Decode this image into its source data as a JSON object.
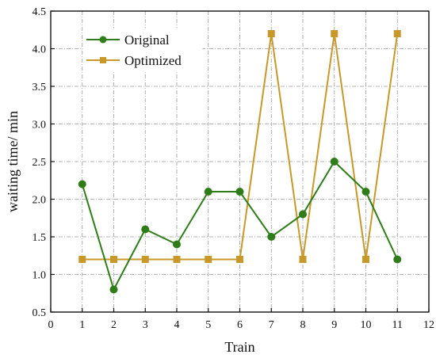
{
  "chart_data": {
    "type": "line",
    "xlabel": "Train",
    "ylabel": "waiting time/ min",
    "xlim": [
      0,
      12
    ],
    "ylim": [
      0.5,
      4.5
    ],
    "x_ticks": [
      0,
      1,
      2,
      3,
      4,
      5,
      6,
      7,
      8,
      9,
      10,
      11,
      12
    ],
    "y_ticks": [
      0.5,
      1.0,
      1.5,
      2.0,
      2.5,
      3.0,
      3.5,
      4.0,
      4.5
    ],
    "grid": true,
    "legend_position": "top-left",
    "series": [
      {
        "name": "Original",
        "color": "#2e7d18",
        "marker": "circle",
        "x": [
          1,
          2,
          3,
          4,
          5,
          6,
          7,
          8,
          9,
          10,
          11
        ],
        "values": [
          2.2,
          0.8,
          1.6,
          1.4,
          2.1,
          2.1,
          1.5,
          1.8,
          2.5,
          2.1,
          1.2
        ]
      },
      {
        "name": "Optimized",
        "color": "#c8982a",
        "marker": "square",
        "x": [
          1,
          2,
          3,
          4,
          5,
          6,
          7,
          8,
          9,
          10,
          11
        ],
        "values": [
          1.2,
          1.2,
          1.2,
          1.2,
          1.2,
          1.2,
          4.2,
          1.2,
          4.2,
          1.2,
          4.2
        ]
      }
    ]
  }
}
